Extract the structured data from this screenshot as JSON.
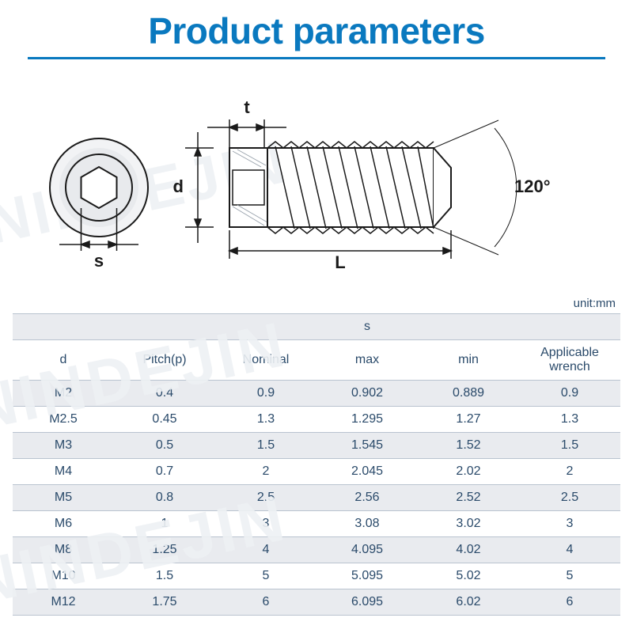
{
  "title": "Product parameters",
  "diagram": {
    "labels": {
      "t": "t",
      "d": "d",
      "s": "s",
      "L": "L",
      "angle": "120°"
    },
    "colors": {
      "stroke": "#1a1a1a",
      "hatch": "#9aa3ad",
      "hatch_light": "#c7ccd2",
      "shade": "#dfe2e6"
    }
  },
  "table": {
    "unit_label": "unit:mm",
    "group_header": "s",
    "columns": [
      "d",
      "Pitch(p)",
      "Nominal",
      "max",
      "min",
      "Applicable wrench"
    ],
    "rows": [
      [
        "M2",
        "0.4",
        "0.9",
        "0.902",
        "0.889",
        "0.9"
      ],
      [
        "M2.5",
        "0.45",
        "1.3",
        "1.295",
        "1.27",
        "1.3"
      ],
      [
        "M3",
        "0.5",
        "1.5",
        "1.545",
        "1.52",
        "1.5"
      ],
      [
        "M4",
        "0.7",
        "2",
        "2.045",
        "2.02",
        "2"
      ],
      [
        "M5",
        "0.8",
        "2.5",
        "2.56",
        "2.52",
        "2.5"
      ],
      [
        "M6",
        "1",
        "3",
        "3.08",
        "3.02",
        "3"
      ],
      [
        "M8",
        "1.25",
        "4",
        "4.095",
        "4.02",
        "4"
      ],
      [
        "M10",
        "1.5",
        "5",
        "5.095",
        "5.02",
        "5"
      ],
      [
        "M12",
        "1.75",
        "6",
        "6.095",
        "6.02",
        "6"
      ]
    ],
    "colors": {
      "row_alt": "#e9ebef",
      "row_base": "#ffffff",
      "border": "#b9c3cf",
      "text": "#2a4a6a"
    }
  },
  "watermark": "NINDEJIN",
  "title_color": "#0a79bf"
}
